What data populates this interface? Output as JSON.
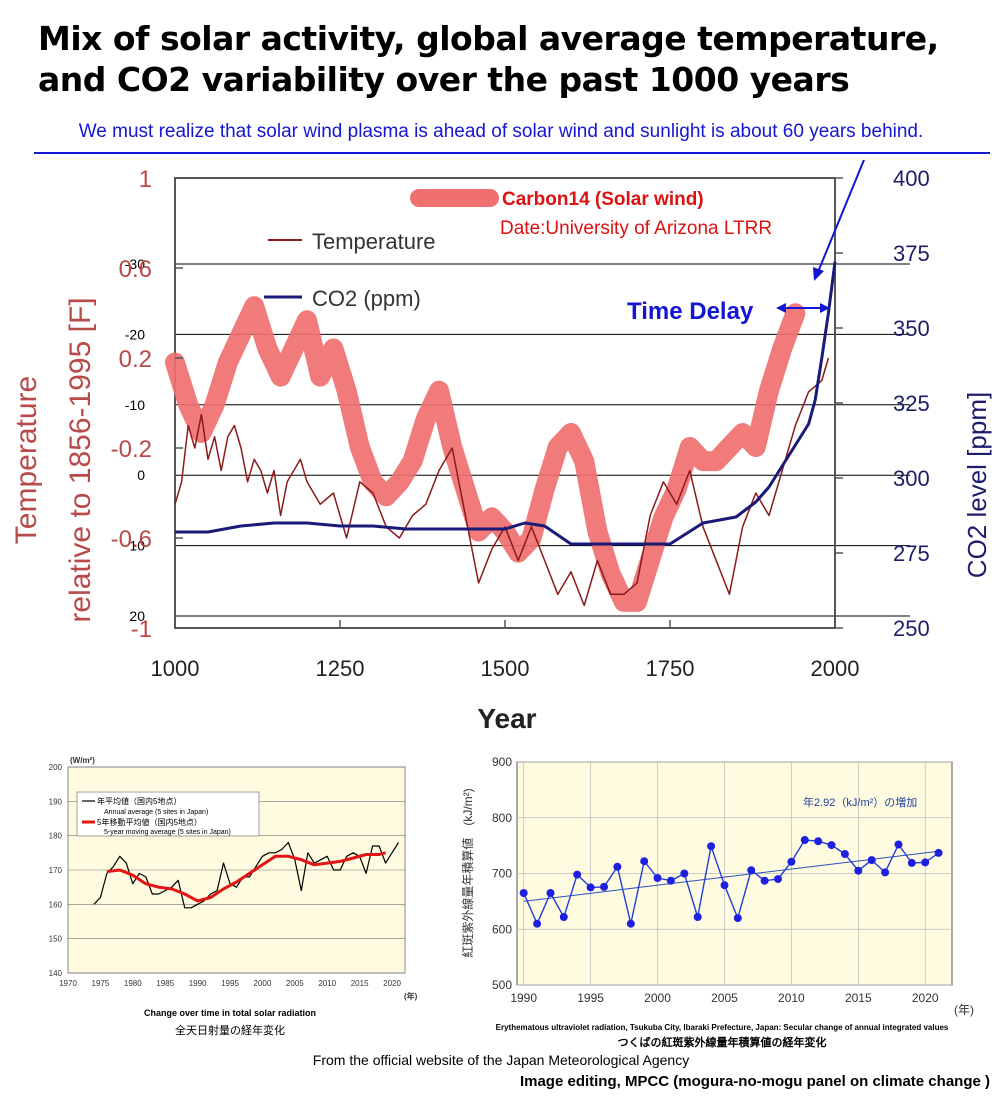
{
  "title_line1": "Mix of solar activity, global average temperature,",
  "title_line2": "and CO2 variability over the past 1000 years",
  "subtitle": "We must realize that solar wind plasma is ahead of solar wind and sunlight is about 60 years behind.",
  "colors": {
    "temperature": "#8b1a1a",
    "co2": "#1a1a78",
    "carbon14": "#f07070",
    "annotation": "#1515d4",
    "red_text": "#dd1111",
    "axis_left": "#b84a4a",
    "axis_right": "#1d1d6b",
    "jma_panel": "#fffbe0"
  },
  "chart_data": [
    {
      "type": "line",
      "x_axis": {
        "label": "Year",
        "ticks": [
          "1000",
          "1250",
          "1500",
          "1750",
          "2000"
        ],
        "range": [
          1000,
          2000
        ]
      },
      "y_left": {
        "label_line1": "Temperature",
        "label_line2": "relative to 1856-1995 [F]",
        "ticks": [
          "1",
          "0.6",
          "0.2",
          "-0.2",
          "-0.6",
          "-1"
        ],
        "range": [
          -1,
          1
        ]
      },
      "y_right": {
        "label": "CO2 level [ppm]",
        "ticks": [
          "400",
          "375",
          "350",
          "325",
          "300",
          "275",
          "250"
        ],
        "range": [
          250,
          400
        ]
      },
      "y_carbon14": {
        "ticks": [
          "-30",
          "-20",
          "-10",
          "0",
          "10",
          "20"
        ],
        "range": [
          -30,
          20
        ],
        "reversed": true
      },
      "legend": {
        "temperature": "Temperature",
        "co2": "CO2 (ppm)",
        "carbon14": "Carbon14 (Solar wind)",
        "carbon14_source": "Date:University of Arizona LTRR"
      },
      "annotation": "Time Delay",
      "series": [
        {
          "name": "CO2 (ppm)",
          "axis": "right",
          "x": [
            1000,
            1050,
            1100,
            1150,
            1200,
            1250,
            1300,
            1350,
            1400,
            1450,
            1500,
            1530,
            1560,
            1600,
            1650,
            1700,
            1750,
            1800,
            1850,
            1880,
            1900,
            1920,
            1940,
            1960,
            1970,
            1980,
            1990,
            2000
          ],
          "y": [
            282,
            282,
            284,
            285,
            285,
            284,
            284,
            283,
            283,
            283,
            283,
            285,
            284,
            278,
            278,
            278,
            278,
            285,
            287,
            292,
            297,
            304,
            311,
            318,
            326,
            340,
            355,
            372
          ]
        },
        {
          "name": "Temperature",
          "axis": "left",
          "x": [
            1000,
            1010,
            1020,
            1030,
            1040,
            1050,
            1060,
            1070,
            1080,
            1090,
            1100,
            1110,
            1120,
            1130,
            1140,
            1150,
            1160,
            1170,
            1180,
            1190,
            1200,
            1220,
            1240,
            1260,
            1280,
            1300,
            1320,
            1340,
            1360,
            1380,
            1400,
            1420,
            1440,
            1460,
            1480,
            1500,
            1520,
            1540,
            1560,
            1580,
            1600,
            1620,
            1640,
            1660,
            1680,
            1700,
            1720,
            1740,
            1760,
            1780,
            1800,
            1820,
            1840,
            1860,
            1880,
            1900,
            1920,
            1940,
            1960,
            1980,
            1990
          ],
          "y": [
            -0.45,
            -0.35,
            -0.1,
            -0.2,
            -0.05,
            -0.25,
            -0.15,
            -0.3,
            -0.15,
            -0.1,
            -0.2,
            -0.35,
            -0.25,
            -0.3,
            -0.4,
            -0.3,
            -0.5,
            -0.35,
            -0.3,
            -0.25,
            -0.35,
            -0.45,
            -0.4,
            -0.6,
            -0.35,
            -0.4,
            -0.55,
            -0.6,
            -0.5,
            -0.45,
            -0.3,
            -0.2,
            -0.5,
            -0.8,
            -0.65,
            -0.55,
            -0.7,
            -0.55,
            -0.7,
            -0.85,
            -0.75,
            -0.9,
            -0.7,
            -0.85,
            -0.85,
            -0.8,
            -0.5,
            -0.35,
            -0.45,
            -0.3,
            -0.55,
            -0.7,
            -0.85,
            -0.55,
            -0.4,
            -0.5,
            -0.3,
            -0.1,
            0.05,
            0.1,
            0.2
          ]
        },
        {
          "name": "Carbon14 (Solar wind)",
          "axis": "carbon14",
          "x": [
            1000,
            1020,
            1040,
            1060,
            1080,
            1100,
            1120,
            1140,
            1160,
            1180,
            1200,
            1220,
            1240,
            1260,
            1280,
            1300,
            1320,
            1340,
            1360,
            1380,
            1400,
            1420,
            1440,
            1460,
            1480,
            1500,
            1520,
            1540,
            1560,
            1580,
            1600,
            1620,
            1640,
            1660,
            1680,
            1700,
            1720,
            1740,
            1760,
            1780,
            1800,
            1820,
            1840,
            1860,
            1880,
            1900,
            1920,
            1940
          ],
          "y": [
            -16,
            -10,
            -6,
            -10,
            -16,
            -20,
            -24,
            -18,
            -14,
            -18,
            -22,
            -14,
            -18,
            -12,
            -4,
            1,
            3,
            1,
            -2,
            -8,
            -12,
            -4,
            2,
            8,
            6,
            8,
            11,
            9,
            2,
            -4,
            -6,
            -2,
            8,
            14,
            18,
            18,
            12,
            6,
            2,
            -4,
            -2,
            -2,
            -4,
            -6,
            -4,
            -12,
            -18,
            -23
          ]
        }
      ]
    },
    {
      "type": "line",
      "ylabel": "(W/m²)",
      "xlabel": "(年)",
      "x_ticks": [
        "1970",
        "1975",
        "1980",
        "1985",
        "1990",
        "1995",
        "2000",
        "2005",
        "2010",
        "2015",
        "2020"
      ],
      "y_ticks": [
        "200",
        "190",
        "180",
        "170",
        "160",
        "150",
        "140"
      ],
      "ylim": [
        140,
        200
      ],
      "legend": [
        {
          "jp": "年平均値（国内5地点）",
          "en": "Annual average (5 sites in Japan)"
        },
        {
          "jp": "5年移動平均値（国内5地点）",
          "en": "5-year moving average (5 sites in Japan)"
        }
      ],
      "caption_en": "Change over time in total solar radiation",
      "caption_jp": "全天日射量の経年変化",
      "series": [
        {
          "name": "Annual average (5 sites in Japan)",
          "x": [
            1974,
            1975,
            1976,
            1977,
            1978,
            1979,
            1980,
            1981,
            1982,
            1983,
            1984,
            1985,
            1986,
            1987,
            1988,
            1989,
            1990,
            1991,
            1992,
            1993,
            1994,
            1995,
            1996,
            1997,
            1998,
            1999,
            2000,
            2001,
            2002,
            2003,
            2004,
            2005,
            2006,
            2007,
            2008,
            2009,
            2010,
            2011,
            2012,
            2013,
            2014,
            2015,
            2016,
            2017,
            2018,
            2019,
            2020,
            2021
          ],
          "y": [
            160,
            162,
            169,
            171,
            174,
            172,
            166,
            169,
            168,
            163,
            163,
            164,
            165,
            167,
            159,
            159,
            160,
            161,
            163,
            164,
            172,
            166,
            165,
            168,
            168,
            171,
            174,
            175,
            175,
            176,
            178,
            173,
            164,
            175,
            172,
            173,
            174,
            170,
            170,
            174,
            175,
            174,
            169,
            177,
            177,
            172,
            175,
            178
          ]
        },
        {
          "name": "5-year moving average (5 sites in Japan)",
          "x": [
            1976,
            1978,
            1980,
            1982,
            1984,
            1986,
            1988,
            1990,
            1992,
            1994,
            1996,
            1998,
            2000,
            2002,
            2004,
            2006,
            2008,
            2010,
            2012,
            2014,
            2016,
            2018,
            2019
          ],
          "y": [
            169.5,
            170,
            168.5,
            166,
            165,
            164.5,
            163,
            161,
            162,
            164.5,
            166.5,
            169,
            171.5,
            174,
            174,
            173,
            171.5,
            172,
            172.5,
            173.5,
            174.5,
            174.5,
            175
          ]
        }
      ]
    },
    {
      "type": "line",
      "ylabel": "紅斑紫外線量年積算値　(kJ/m²)",
      "xlabel": "(年)",
      "x_ticks": [
        "1990",
        "1995",
        "2000",
        "2005",
        "2010",
        "2015",
        "2020"
      ],
      "y_ticks": [
        "900",
        "800",
        "700",
        "600",
        "500"
      ],
      "ylim": [
        500,
        900
      ],
      "trend_note": "年2.92（kJ/m²）の増加",
      "caption_en": "Erythematous ultraviolet radiation, Tsukuba City, Ibaraki Prefecture, Japan: Secular change of annual integrated values",
      "caption_jp": "つくばの紅斑紫外線量年積算値の経年変化",
      "series": [
        {
          "name": "Annual integrated value",
          "x": [
            1990,
            1991,
            1992,
            1993,
            1994,
            1995,
            1996,
            1997,
            1998,
            1999,
            2000,
            2001,
            2002,
            2003,
            2004,
            2005,
            2006,
            2007,
            2008,
            2009,
            2010,
            2011,
            2012,
            2013,
            2014,
            2015,
            2016,
            2017,
            2018,
            2019,
            2020,
            2021
          ],
          "y": [
            665,
            610,
            665,
            622,
            698,
            675,
            676,
            712,
            610,
            722,
            692,
            687,
            700,
            622,
            749,
            679,
            620,
            706,
            687,
            690,
            721,
            760,
            758,
            751,
            735,
            705,
            724,
            702,
            752,
            719,
            720,
            737
          ]
        },
        {
          "name": "Trend",
          "x": [
            1990,
            2021
          ],
          "y": [
            650,
            740
          ]
        }
      ]
    }
  ],
  "footer_source": "From the official website of the Japan Meteorological Agency",
  "footer_credit": "Image editing, MPCC (mogura-no-mogu panel on climate change )"
}
